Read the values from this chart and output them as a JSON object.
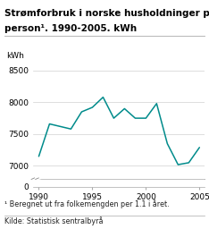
{
  "title_line1": "Strømforbruk i norske husholdninger per",
  "title_line2": "person¹. 1990-2005. kWh",
  "ylabel": "kWh",
  "footnote1": "¹ Beregnet ut fra folkemengden per 1.1 i året.",
  "footnote2": "Kilde: Statistisk sentralbyrå",
  "years": [
    1990,
    1991,
    1992,
    1993,
    1994,
    1995,
    1996,
    1997,
    1998,
    1999,
    2000,
    2001,
    2002,
    2003,
    2004,
    2005
  ],
  "values": [
    7150,
    7660,
    7620,
    7580,
    7850,
    7920,
    8080,
    7750,
    7900,
    7750,
    7750,
    7980,
    7350,
    7020,
    7050,
    7290
  ],
  "line_color": "#008B8B",
  "ylim_main": [
    6800,
    8600
  ],
  "yticks_main": [
    7000,
    7500,
    8000,
    8500
  ],
  "xlim": [
    1989.5,
    2005.5
  ],
  "xticks": [
    1990,
    1995,
    2000,
    2005
  ],
  "title_fontsize": 7.5,
  "tick_fontsize": 6.5,
  "footnote_fontsize": 5.8,
  "background_color": "#ffffff",
  "grid_color": "#d0d0d0",
  "line_color_break": "#888888"
}
